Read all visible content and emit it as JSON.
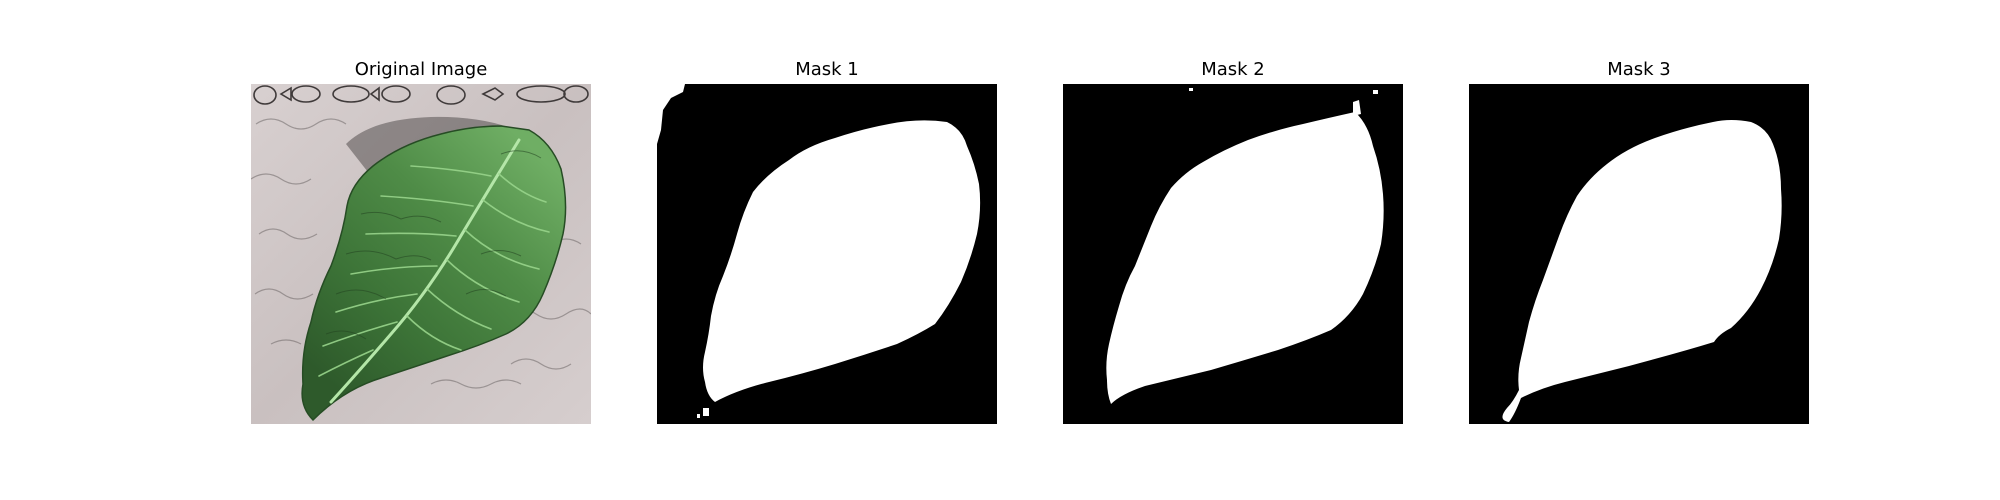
{
  "figure": {
    "panels": [
      {
        "title": "Original Image",
        "kind": "photo"
      },
      {
        "title": "Mask 1",
        "kind": "mask"
      },
      {
        "title": "Mask 2",
        "kind": "mask"
      },
      {
        "title": "Mask 3",
        "kind": "mask"
      }
    ],
    "colors": {
      "mask_background": "#000000",
      "mask_foreground": "#ffffff",
      "leaf_dark": "#2f5a2a",
      "leaf_mid": "#4d8a44",
      "leaf_light": "#8cc77e",
      "photo_background": "#cfc6c6",
      "photo_pattern": "#4a4646"
    }
  }
}
